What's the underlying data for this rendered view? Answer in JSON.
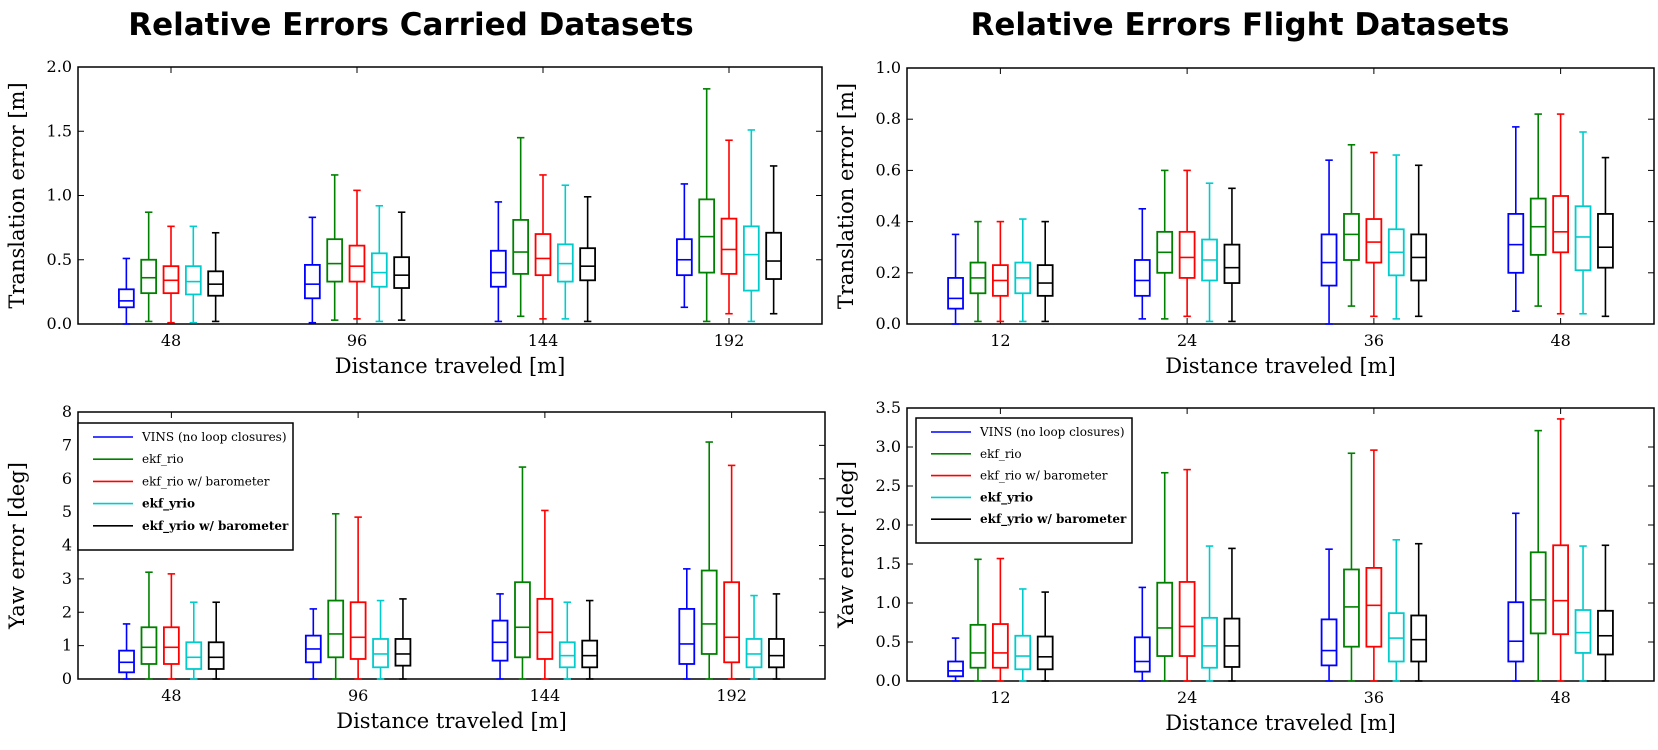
{
  "titles": [
    "Relative Errors Carried Datasets",
    "Relative Errors Flight Datasets"
  ],
  "chart_data": [
    {
      "type": "box",
      "xlabel": "Distance traveled [m]",
      "ylabel": "Translation error [m]",
      "ylim": [
        0,
        2.0
      ],
      "yticks": [
        "0.0",
        "0.5",
        "1.0",
        "1.5",
        "2.0"
      ],
      "categories": [
        "48",
        "96",
        "144",
        "192"
      ],
      "series": [
        {
          "name": "VINS (no loop closures)",
          "color": "#0000ff",
          "boxes": [
            {
              "min": 0.0,
              "q1": 0.13,
              "median": 0.18,
              "q3": 0.27,
              "max": 0.51
            },
            {
              "min": 0.01,
              "q1": 0.2,
              "median": 0.31,
              "q3": 0.46,
              "max": 0.83
            },
            {
              "min": 0.02,
              "q1": 0.29,
              "median": 0.4,
              "q3": 0.57,
              "max": 0.95
            },
            {
              "min": 0.13,
              "q1": 0.38,
              "median": 0.5,
              "q3": 0.66,
              "max": 1.09
            }
          ]
        },
        {
          "name": "ekf_rio",
          "color": "#008000",
          "boxes": [
            {
              "min": 0.02,
              "q1": 0.24,
              "median": 0.36,
              "q3": 0.5,
              "max": 0.87
            },
            {
              "min": 0.03,
              "q1": 0.33,
              "median": 0.47,
              "q3": 0.66,
              "max": 1.16
            },
            {
              "min": 0.06,
              "q1": 0.39,
              "median": 0.56,
              "q3": 0.81,
              "max": 1.45
            },
            {
              "min": 0.02,
              "q1": 0.4,
              "median": 0.68,
              "q3": 0.97,
              "max": 1.83
            }
          ]
        },
        {
          "name": "ekf_rio w/ barometer",
          "color": "#ff0000",
          "boxes": [
            {
              "min": 0.01,
              "q1": 0.24,
              "median": 0.34,
              "q3": 0.45,
              "max": 0.76
            },
            {
              "min": 0.04,
              "q1": 0.33,
              "median": 0.45,
              "q3": 0.61,
              "max": 1.04
            },
            {
              "min": 0.04,
              "q1": 0.38,
              "median": 0.51,
              "q3": 0.7,
              "max": 1.16
            },
            {
              "min": 0.08,
              "q1": 0.39,
              "median": 0.58,
              "q3": 0.82,
              "max": 1.43
            }
          ]
        },
        {
          "name": "ekf_yrio",
          "color": "#00cccc",
          "boxes": [
            {
              "min": 0.01,
              "q1": 0.23,
              "median": 0.33,
              "q3": 0.45,
              "max": 0.76
            },
            {
              "min": 0.02,
              "q1": 0.29,
              "median": 0.4,
              "q3": 0.55,
              "max": 0.92
            },
            {
              "min": 0.04,
              "q1": 0.33,
              "median": 0.47,
              "q3": 0.62,
              "max": 1.08
            },
            {
              "min": 0.02,
              "q1": 0.26,
              "median": 0.54,
              "q3": 0.76,
              "max": 1.51
            }
          ]
        },
        {
          "name": "ekf_yrio w/ barometer",
          "color": "#000000",
          "boxes": [
            {
              "min": 0.02,
              "q1": 0.22,
              "median": 0.31,
              "q3": 0.41,
              "max": 0.71
            },
            {
              "min": 0.03,
              "q1": 0.28,
              "median": 0.38,
              "q3": 0.52,
              "max": 0.87
            },
            {
              "min": 0.02,
              "q1": 0.34,
              "median": 0.45,
              "q3": 0.59,
              "max": 0.99
            },
            {
              "min": 0.08,
              "q1": 0.35,
              "median": 0.49,
              "q3": 0.71,
              "max": 1.23
            }
          ]
        }
      ]
    },
    {
      "type": "box",
      "xlabel": "Distance traveled [m]",
      "ylabel": "Translation error [m]",
      "ylim": [
        0,
        1.0
      ],
      "yticks": [
        "0.0",
        "0.2",
        "0.4",
        "0.6",
        "0.8",
        "1.0"
      ],
      "categories": [
        "12",
        "24",
        "36",
        "48"
      ],
      "series": [
        {
          "name": "VINS (no loop closures)",
          "color": "#0000ff",
          "boxes": [
            {
              "min": 0.0,
              "q1": 0.06,
              "median": 0.1,
              "q3": 0.18,
              "max": 0.35
            },
            {
              "min": 0.02,
              "q1": 0.11,
              "median": 0.17,
              "q3": 0.25,
              "max": 0.45
            },
            {
              "min": 0.0,
              "q1": 0.15,
              "median": 0.24,
              "q3": 0.35,
              "max": 0.64
            },
            {
              "min": 0.05,
              "q1": 0.2,
              "median": 0.31,
              "q3": 0.43,
              "max": 0.77
            }
          ]
        },
        {
          "name": "ekf_rio",
          "color": "#008000",
          "boxes": [
            {
              "min": 0.01,
              "q1": 0.12,
              "median": 0.18,
              "q3": 0.24,
              "max": 0.4
            },
            {
              "min": 0.02,
              "q1": 0.2,
              "median": 0.28,
              "q3": 0.36,
              "max": 0.6
            },
            {
              "min": 0.07,
              "q1": 0.25,
              "median": 0.35,
              "q3": 0.43,
              "max": 0.7
            },
            {
              "min": 0.07,
              "q1": 0.27,
              "median": 0.38,
              "q3": 0.49,
              "max": 0.82
            }
          ]
        },
        {
          "name": "ekf_rio w/ barometer",
          "color": "#ff0000",
          "boxes": [
            {
              "min": 0.01,
              "q1": 0.11,
              "median": 0.17,
              "q3": 0.23,
              "max": 0.4
            },
            {
              "min": 0.03,
              "q1": 0.18,
              "median": 0.26,
              "q3": 0.36,
              "max": 0.6
            },
            {
              "min": 0.03,
              "q1": 0.24,
              "median": 0.32,
              "q3": 0.41,
              "max": 0.67
            },
            {
              "min": 0.04,
              "q1": 0.28,
              "median": 0.36,
              "q3": 0.5,
              "max": 0.82
            }
          ]
        },
        {
          "name": "ekf_yrio",
          "color": "#00cccc",
          "boxes": [
            {
              "min": 0.01,
              "q1": 0.12,
              "median": 0.18,
              "q3": 0.24,
              "max": 0.41
            },
            {
              "min": 0.01,
              "q1": 0.17,
              "median": 0.25,
              "q3": 0.33,
              "max": 0.55
            },
            {
              "min": 0.02,
              "q1": 0.19,
              "median": 0.28,
              "q3": 0.37,
              "max": 0.66
            },
            {
              "min": 0.04,
              "q1": 0.21,
              "median": 0.34,
              "q3": 0.46,
              "max": 0.75
            }
          ]
        },
        {
          "name": "ekf_yrio w/ barometer",
          "color": "#000000",
          "boxes": [
            {
              "min": 0.01,
              "q1": 0.11,
              "median": 0.16,
              "q3": 0.23,
              "max": 0.4
            },
            {
              "min": 0.01,
              "q1": 0.16,
              "median": 0.22,
              "q3": 0.31,
              "max": 0.53
            },
            {
              "min": 0.03,
              "q1": 0.17,
              "median": 0.26,
              "q3": 0.35,
              "max": 0.62
            },
            {
              "min": 0.03,
              "q1": 0.22,
              "median": 0.3,
              "q3": 0.43,
              "max": 0.65
            }
          ]
        }
      ]
    },
    {
      "type": "box",
      "xlabel": "Distance traveled [m]",
      "ylabel": "Yaw error [deg]",
      "ylim": [
        0,
        8
      ],
      "yticks": [
        "0",
        "1",
        "2",
        "3",
        "4",
        "5",
        "6",
        "7",
        "8"
      ],
      "categories": [
        "48",
        "96",
        "144",
        "192"
      ],
      "legend": "upper left",
      "series": [
        {
          "name": "VINS (no loop closures)",
          "color": "#0000ff",
          "bold": false,
          "boxes": [
            {
              "min": 0.0,
              "q1": 0.2,
              "median": 0.5,
              "q3": 0.85,
              "max": 1.65
            },
            {
              "min": 0.0,
              "q1": 0.5,
              "median": 0.9,
              "q3": 1.3,
              "max": 2.1
            },
            {
              "min": 0.0,
              "q1": 0.55,
              "median": 1.1,
              "q3": 1.75,
              "max": 2.55
            },
            {
              "min": 0.0,
              "q1": 0.45,
              "median": 1.05,
              "q3": 2.1,
              "max": 3.3
            }
          ]
        },
        {
          "name": "ekf_rio",
          "color": "#008000",
          "bold": false,
          "boxes": [
            {
              "min": 0.0,
              "q1": 0.45,
              "median": 0.95,
              "q3": 1.55,
              "max": 3.2
            },
            {
              "min": 0.0,
              "q1": 0.65,
              "median": 1.35,
              "q3": 2.35,
              "max": 4.95
            },
            {
              "min": 0.0,
              "q1": 0.65,
              "median": 1.55,
              "q3": 2.9,
              "max": 6.35
            },
            {
              "min": 0.0,
              "q1": 0.75,
              "median": 1.65,
              "q3": 3.25,
              "max": 7.1
            }
          ]
        },
        {
          "name": "ekf_rio w/ barometer",
          "color": "#ff0000",
          "bold": false,
          "boxes": [
            {
              "min": 0.0,
              "q1": 0.45,
              "median": 0.95,
              "q3": 1.55,
              "max": 3.15
            },
            {
              "min": 0.0,
              "q1": 0.6,
              "median": 1.25,
              "q3": 2.3,
              "max": 4.85
            },
            {
              "min": 0.0,
              "q1": 0.6,
              "median": 1.4,
              "q3": 2.4,
              "max": 5.05
            },
            {
              "min": 0.0,
              "q1": 0.5,
              "median": 1.25,
              "q3": 2.9,
              "max": 6.4
            }
          ]
        },
        {
          "name": "ekf_yrio",
          "color": "#00cccc",
          "bold": true,
          "boxes": [
            {
              "min": 0.0,
              "q1": 0.3,
              "median": 0.65,
              "q3": 1.1,
              "max": 2.3
            },
            {
              "min": 0.0,
              "q1": 0.35,
              "median": 0.75,
              "q3": 1.2,
              "max": 2.35
            },
            {
              "min": 0.0,
              "q1": 0.35,
              "median": 0.7,
              "q3": 1.1,
              "max": 2.3
            },
            {
              "min": 0.0,
              "q1": 0.35,
              "median": 0.75,
              "q3": 1.2,
              "max": 2.5
            }
          ]
        },
        {
          "name": "ekf_yrio w/ barometer",
          "color": "#000000",
          "bold": true,
          "boxes": [
            {
              "min": 0.0,
              "q1": 0.3,
              "median": 0.65,
              "q3": 1.1,
              "max": 2.3
            },
            {
              "min": 0.0,
              "q1": 0.4,
              "median": 0.75,
              "q3": 1.2,
              "max": 2.4
            },
            {
              "min": 0.0,
              "q1": 0.35,
              "median": 0.7,
              "q3": 1.15,
              "max": 2.35
            },
            {
              "min": 0.0,
              "q1": 0.35,
              "median": 0.7,
              "q3": 1.2,
              "max": 2.55
            }
          ]
        }
      ]
    },
    {
      "type": "box",
      "xlabel": "Distance traveled [m]",
      "ylabel": "Yaw error [deg]",
      "ylim": [
        0,
        3.5
      ],
      "yticks": [
        "0.0",
        "0.5",
        "1.0",
        "1.5",
        "2.0",
        "2.5",
        "3.0",
        "3.5"
      ],
      "categories": [
        "12",
        "24",
        "36",
        "48"
      ],
      "legend": "upper left",
      "series": [
        {
          "name": "VINS (no loop closures)",
          "color": "#0000ff",
          "bold": false,
          "boxes": [
            {
              "min": 0.0,
              "q1": 0.06,
              "median": 0.13,
              "q3": 0.25,
              "max": 0.55
            },
            {
              "min": 0.0,
              "q1": 0.12,
              "median": 0.25,
              "q3": 0.56,
              "max": 1.2
            },
            {
              "min": 0.0,
              "q1": 0.2,
              "median": 0.39,
              "q3": 0.79,
              "max": 1.69
            },
            {
              "min": 0.0,
              "q1": 0.25,
              "median": 0.51,
              "q3": 1.01,
              "max": 2.15
            }
          ]
        },
        {
          "name": "ekf_rio",
          "color": "#008000",
          "bold": false,
          "boxes": [
            {
              "min": 0.0,
              "q1": 0.17,
              "median": 0.36,
              "q3": 0.72,
              "max": 1.56
            },
            {
              "min": 0.0,
              "q1": 0.32,
              "median": 0.68,
              "q3": 1.26,
              "max": 2.67
            },
            {
              "min": 0.0,
              "q1": 0.44,
              "median": 0.95,
              "q3": 1.43,
              "max": 2.92
            },
            {
              "min": 0.0,
              "q1": 0.61,
              "median": 1.04,
              "q3": 1.65,
              "max": 3.21
            }
          ]
        },
        {
          "name": "ekf_rio w/ barometer",
          "color": "#ff0000",
          "bold": false,
          "boxes": [
            {
              "min": 0.0,
              "q1": 0.17,
              "median": 0.36,
              "q3": 0.73,
              "max": 1.57
            },
            {
              "min": 0.0,
              "q1": 0.32,
              "median": 0.7,
              "q3": 1.27,
              "max": 2.71
            },
            {
              "min": 0.0,
              "q1": 0.44,
              "median": 0.97,
              "q3": 1.45,
              "max": 2.96
            },
            {
              "min": 0.0,
              "q1": 0.6,
              "median": 1.03,
              "q3": 1.74,
              "max": 3.36
            }
          ]
        },
        {
          "name": "ekf_yrio",
          "color": "#00cccc",
          "bold": true,
          "boxes": [
            {
              "min": 0.0,
              "q1": 0.15,
              "median": 0.32,
              "q3": 0.58,
              "max": 1.18
            },
            {
              "min": 0.0,
              "q1": 0.17,
              "median": 0.45,
              "q3": 0.81,
              "max": 1.73
            },
            {
              "min": 0.0,
              "q1": 0.25,
              "median": 0.55,
              "q3": 0.87,
              "max": 1.81
            },
            {
              "min": 0.0,
              "q1": 0.36,
              "median": 0.62,
              "q3": 0.91,
              "max": 1.73
            }
          ]
        },
        {
          "name": "ekf_yrio w/ barometer",
          "color": "#000000",
          "bold": true,
          "boxes": [
            {
              "min": 0.0,
              "q1": 0.15,
              "median": 0.31,
              "q3": 0.57,
              "max": 1.14
            },
            {
              "min": 0.0,
              "q1": 0.18,
              "median": 0.45,
              "q3": 0.8,
              "max": 1.7
            },
            {
              "min": 0.0,
              "q1": 0.25,
              "median": 0.53,
              "q3": 0.84,
              "max": 1.76
            },
            {
              "min": 0.0,
              "q1": 0.34,
              "median": 0.58,
              "q3": 0.9,
              "max": 1.74
            }
          ]
        }
      ]
    }
  ]
}
